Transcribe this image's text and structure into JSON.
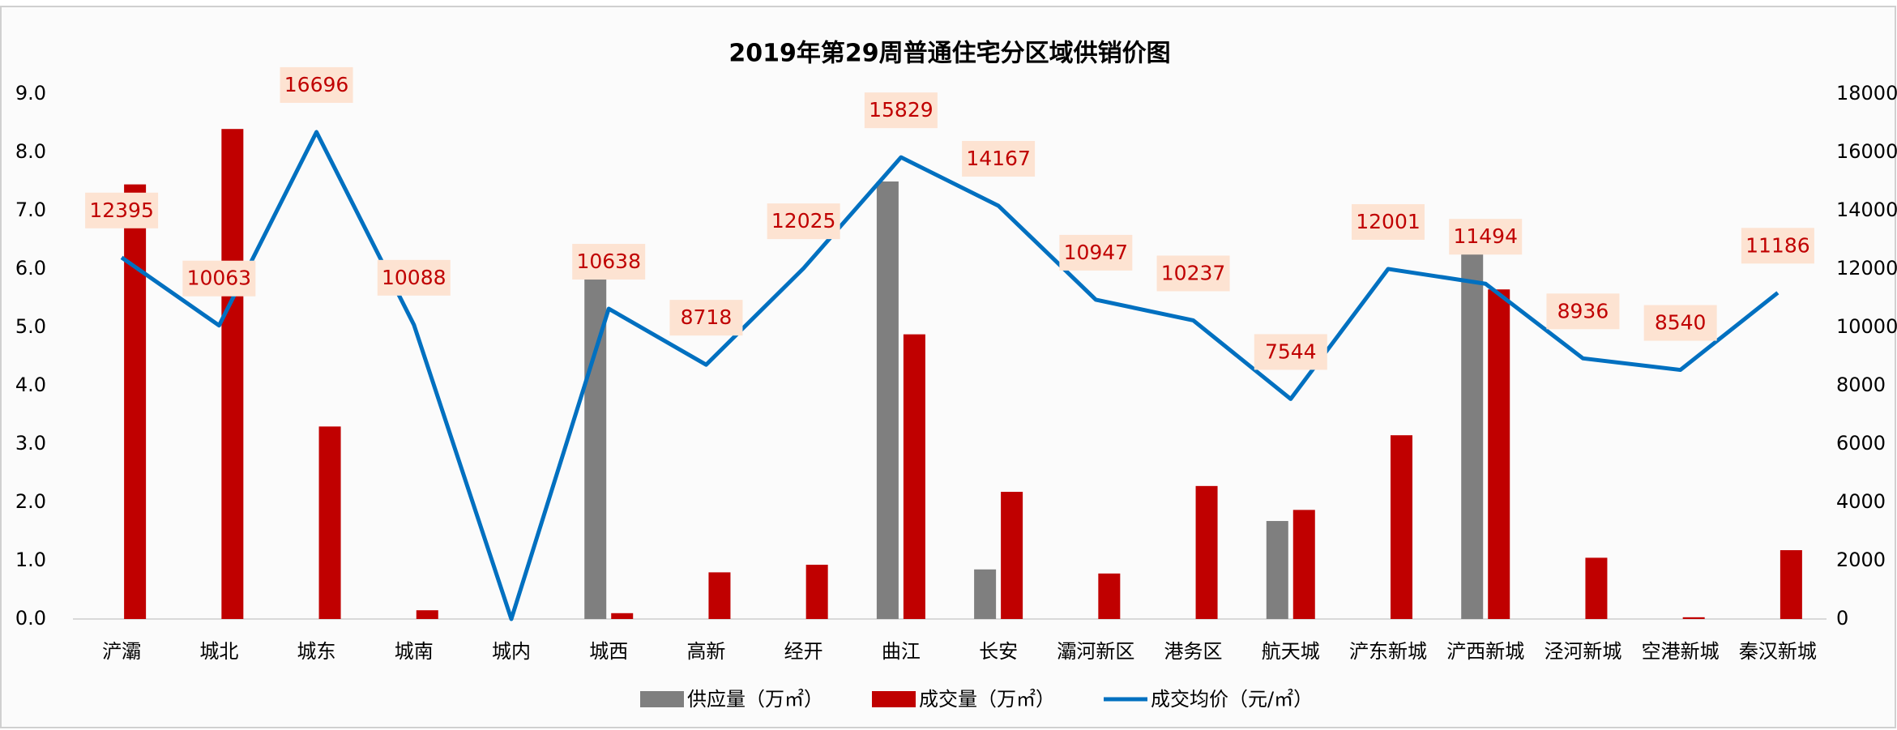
{
  "chart_data": {
    "type": "bar-line",
    "title": "2019年第29周普通住宅分区域供销价图",
    "categories": [
      "浐灞",
      "城北",
      "城东",
      "城南",
      "城内",
      "城西",
      "高新",
      "经开",
      "曲江",
      "长安",
      "灞河新区",
      "港务区",
      "航天城",
      "浐东新城",
      "浐西新城",
      "泾河新城",
      "空港新城",
      "秦汉新城"
    ],
    "series": [
      {
        "name": "供应量（万㎡）",
        "color": "#7f7f7f",
        "type": "bar",
        "values": [
          0,
          0,
          0,
          0,
          0,
          6.25,
          0,
          0,
          7.5,
          0.85,
          0,
          0,
          1.68,
          0,
          6.75,
          0,
          0,
          0
        ]
      },
      {
        "name": "成交量（万㎡）",
        "color": "#c00000",
        "type": "bar",
        "values": [
          7.45,
          8.4,
          3.3,
          0.15,
          0,
          0.1,
          0.8,
          0.93,
          4.88,
          2.18,
          0.78,
          2.28,
          1.87,
          3.15,
          5.65,
          1.05,
          0.03,
          1.18
        ]
      },
      {
        "name": "成交均价（元/㎡）",
        "color": "#0070c0",
        "type": "line",
        "axis": "y2",
        "values": [
          12395,
          10063,
          16696,
          10088,
          0,
          10638,
          8718,
          12025,
          15829,
          14167,
          10947,
          10237,
          7544,
          12001,
          11494,
          8936,
          8540,
          11186
        ]
      }
    ],
    "ylim": [
      0,
      9
    ],
    "yticks": [
      {
        "value": 0,
        "label": "0.0"
      },
      {
        "value": 1,
        "label": "1.0"
      },
      {
        "value": 2,
        "label": "2.0"
      },
      {
        "value": 3,
        "label": "3.0"
      },
      {
        "value": 4,
        "label": "4.0"
      },
      {
        "value": 5,
        "label": "5.0"
      },
      {
        "value": 6,
        "label": "6.0"
      },
      {
        "value": 7,
        "label": "7.0"
      },
      {
        "value": 8,
        "label": "8.0"
      },
      {
        "value": 9,
        "label": "9.0"
      }
    ],
    "y2lim": [
      0,
      18000
    ],
    "y2ticks": [
      0,
      2000,
      4000,
      6000,
      8000,
      10000,
      12000,
      14000,
      16000,
      18000
    ],
    "grid": false,
    "legend": "bottom"
  }
}
